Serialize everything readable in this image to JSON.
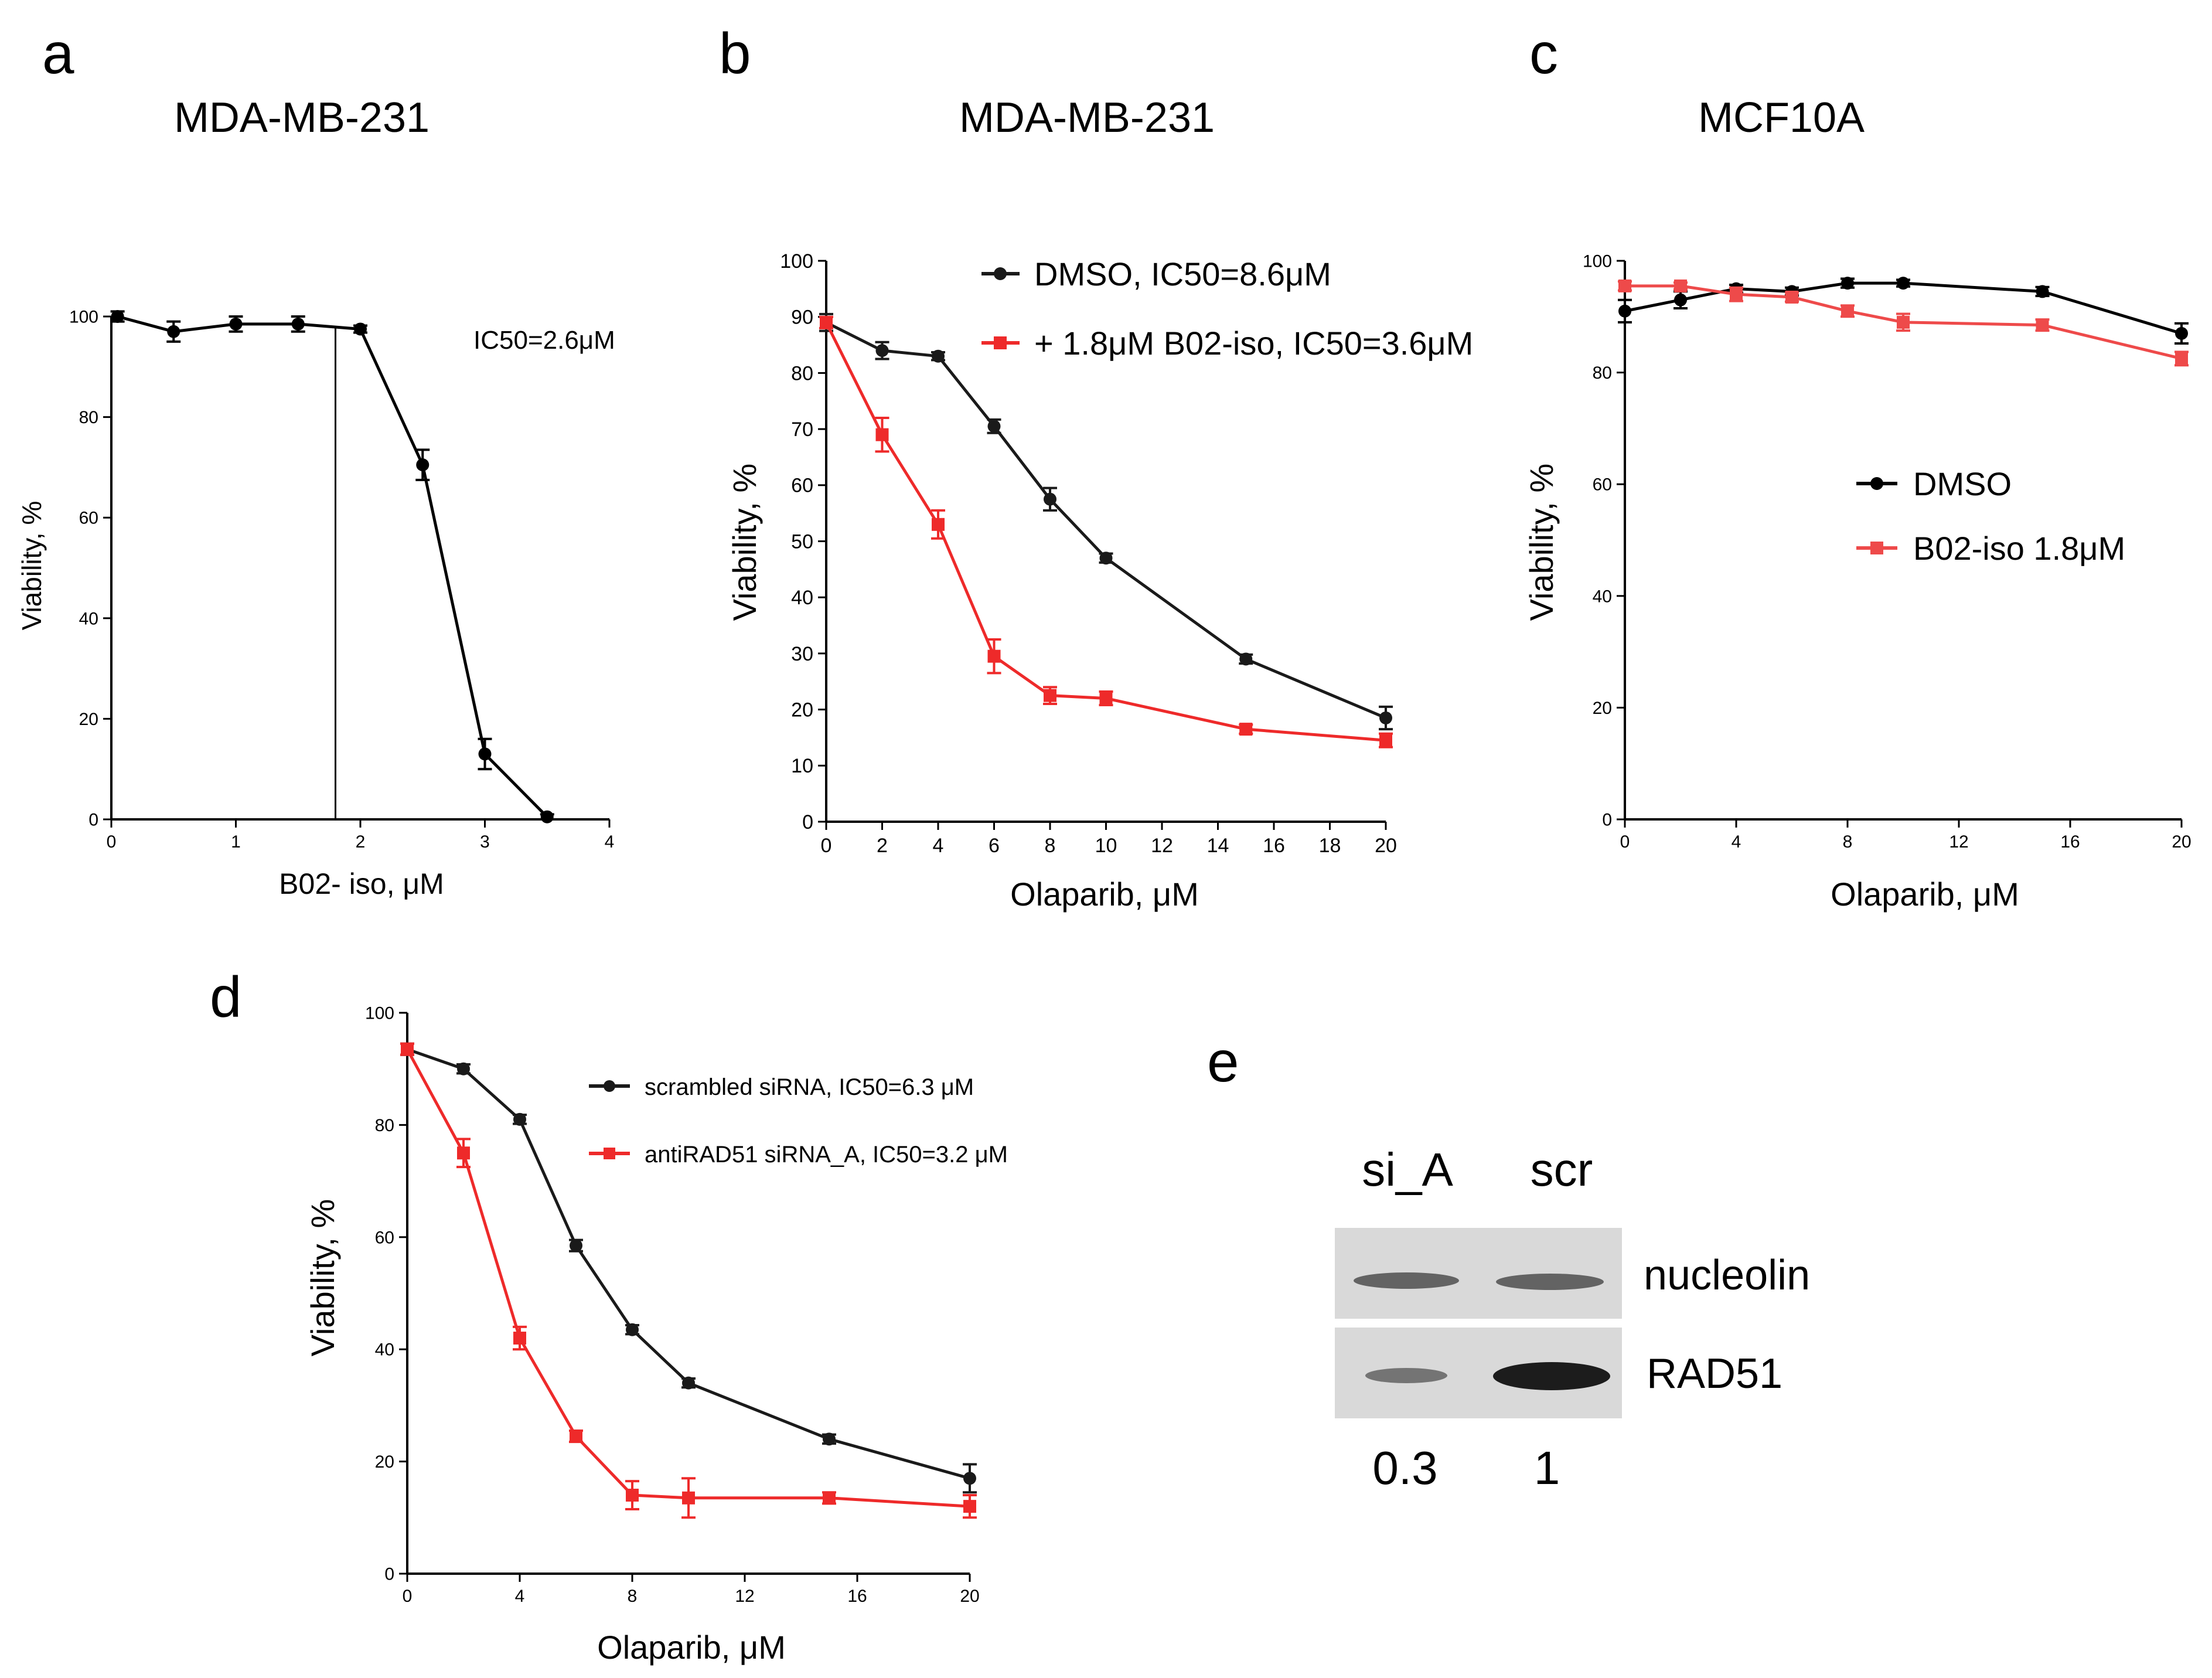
{
  "figure": {
    "panel_letters": [
      "a",
      "b",
      "c",
      "d",
      "e"
    ]
  },
  "chart_data": [
    {
      "id": "a",
      "type": "line",
      "title": "MDA-MB-231",
      "xlabel": "B02- iso, μM",
      "ylabel": "Viability, %",
      "xlim": [
        0,
        4
      ],
      "ylim": [
        0,
        100
      ],
      "xticks": [
        0,
        1,
        2,
        3,
        4
      ],
      "xtick_labels": [
        "0",
        "1",
        "2",
        "3",
        "4"
      ],
      "yticks": [
        0,
        20,
        40,
        60,
        80,
        100
      ],
      "ytick_labels": [
        "0",
        "20",
        "40",
        "60",
        "80",
        "100"
      ],
      "annotation": "IC50=2.6μM",
      "vline_x": 1.8,
      "legend": "none",
      "series": [
        {
          "name": "B02-iso",
          "color": "#000000",
          "marker": "circle",
          "x": [
            0.05,
            0.5,
            1.0,
            1.5,
            2.0,
            2.5,
            3.0,
            3.5
          ],
          "y": [
            100,
            97,
            98.5,
            98.5,
            97.5,
            70.5,
            13,
            0.5
          ],
          "err": [
            1,
            2,
            1.5,
            1.5,
            0.7,
            3,
            3,
            0.5
          ]
        }
      ]
    },
    {
      "id": "b",
      "type": "line",
      "title": "MDA-MB-231",
      "xlabel": "Olaparib, μM",
      "ylabel": "Viability, %",
      "xlim": [
        0,
        20
      ],
      "ylim": [
        0,
        100
      ],
      "xticks": [
        0,
        2,
        4,
        6,
        8,
        10,
        12,
        14,
        16,
        18,
        20
      ],
      "xtick_labels": [
        "0",
        "2",
        "4",
        "6",
        "8",
        "10",
        "12",
        "14",
        "16",
        "18",
        "20"
      ],
      "yticks": [
        0,
        10,
        20,
        30,
        40,
        50,
        60,
        70,
        80,
        90,
        100
      ],
      "ytick_labels": [
        "0",
        "10",
        "20",
        "30",
        "40",
        "50",
        "60",
        "70",
        "80",
        "90",
        "100"
      ],
      "legend": "top-right",
      "series": [
        {
          "name": "DMSO, IC50=8.6μM",
          "color": "#1a1a1a",
          "marker": "circle",
          "x": [
            0,
            2,
            4,
            6,
            8,
            10,
            15,
            20
          ],
          "y": [
            89,
            84,
            83,
            70.5,
            57.5,
            47,
            29,
            18.5
          ],
          "err": [
            1.5,
            1.5,
            0.7,
            1.2,
            2,
            0.8,
            0.8,
            2
          ]
        },
        {
          "name": "+ 1.8μM B02-iso, IC50=3.6μM",
          "color": "#ee2a2a",
          "marker": "square",
          "x": [
            0,
            2,
            4,
            6,
            8,
            10,
            15,
            20
          ],
          "y": [
            89,
            69,
            53,
            29.5,
            22.5,
            22,
            16.5,
            14.5
          ],
          "err": [
            1,
            3,
            2.5,
            3,
            1.5,
            1.2,
            0.8,
            1.2
          ]
        }
      ]
    },
    {
      "id": "c",
      "type": "line",
      "title": "MCF10A",
      "xlabel": "Olaparib, μM",
      "ylabel": "Viability, %",
      "xlim": [
        0,
        20
      ],
      "ylim": [
        0,
        100
      ],
      "xticks": [
        0,
        4,
        8,
        12,
        16,
        20
      ],
      "xtick_labels": [
        "0",
        "4",
        "8",
        "12",
        "16",
        "20"
      ],
      "yticks": [
        0,
        20,
        40,
        60,
        80,
        100
      ],
      "ytick_labels": [
        "0",
        "20",
        "40",
        "60",
        "80",
        "100"
      ],
      "legend": "center-right",
      "series": [
        {
          "name": "DMSO",
          "color": "#000000",
          "marker": "circle",
          "x": [
            0,
            2,
            4,
            6,
            8,
            10,
            15,
            20
          ],
          "y": [
            91,
            93,
            95,
            94.5,
            96,
            96,
            94.5,
            87
          ],
          "err": [
            2,
            1.5,
            0.7,
            0.7,
            0.8,
            0.6,
            0.8,
            1.8
          ]
        },
        {
          "name": "B02-iso 1.8μM",
          "color": "#ee4a4a",
          "marker": "square",
          "x": [
            0,
            2,
            4,
            6,
            8,
            10,
            15,
            20
          ],
          "y": [
            95.5,
            95.5,
            94,
            93.5,
            91,
            89,
            88.5,
            82.5
          ],
          "err": [
            0.8,
            0.6,
            1.2,
            0.8,
            1,
            1.5,
            1,
            1.2
          ]
        }
      ]
    },
    {
      "id": "d",
      "type": "line",
      "title": "",
      "xlabel": "Olaparib, μM",
      "ylabel": "Viability, %",
      "xlim": [
        0,
        20
      ],
      "ylim": [
        0,
        100
      ],
      "xticks": [
        0,
        4,
        8,
        12,
        16,
        20
      ],
      "xtick_labels": [
        "0",
        "4",
        "8",
        "12",
        "16",
        "20"
      ],
      "yticks": [
        0,
        20,
        40,
        60,
        80,
        100
      ],
      "ytick_labels": [
        "0",
        "20",
        "40",
        "60",
        "80",
        "100"
      ],
      "legend": "top-right",
      "series": [
        {
          "name": "scrambled siRNA, IC50=6.3 μM",
          "color": "#1a1a1a",
          "marker": "circle",
          "x": [
            0,
            2,
            4,
            6,
            8,
            10,
            15,
            20
          ],
          "y": [
            93.5,
            90,
            81,
            58.5,
            43.5,
            34,
            24,
            17
          ],
          "err": [
            1,
            0.8,
            0.8,
            1,
            0.8,
            0.8,
            0.8,
            2.5
          ]
        },
        {
          "name": "antiRAD51 siRNA_A, IC50=3.2 μM",
          "color": "#ee2a2a",
          "marker": "square",
          "x": [
            0,
            2,
            4,
            6,
            8,
            10,
            15,
            20
          ],
          "y": [
            93.5,
            75,
            42,
            24.5,
            14,
            13.5,
            13.5,
            12
          ],
          "err": [
            1,
            2.5,
            2,
            1,
            2.5,
            3.5,
            1,
            2
          ]
        }
      ]
    }
  ],
  "western_blot": {
    "lane_labels": [
      "si_A",
      "scr"
    ],
    "band_labels": [
      "nucleolin",
      "RAD51"
    ],
    "quantification": [
      "0.3",
      "1"
    ]
  }
}
